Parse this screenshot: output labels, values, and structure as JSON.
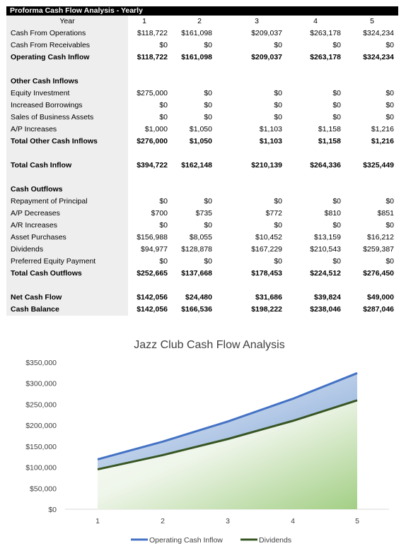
{
  "table": {
    "title": "Proforma Cash Flow Analysis - Yearly",
    "header": {
      "label": "Year",
      "values": [
        "1",
        "2",
        "3",
        "4",
        "5"
      ]
    },
    "rows": [
      {
        "label": "Cash From Operations",
        "values": [
          "$118,722",
          "$161,098",
          "$209,037",
          "$263,178",
          "$324,234"
        ],
        "bold": false
      },
      {
        "label": "Cash From Receivables",
        "values": [
          "$0",
          "$0",
          "$0",
          "$0",
          "$0"
        ],
        "bold": false
      },
      {
        "label": "Operating Cash Inflow",
        "values": [
          "$118,722",
          "$161,098",
          "$209,037",
          "$263,178",
          "$324,234"
        ],
        "bold": true
      },
      {
        "label": "",
        "values": [
          "",
          "",
          "",
          "",
          ""
        ],
        "bold": false
      },
      {
        "label": "Other Cash Inflows",
        "values": [
          "",
          "",
          "",
          "",
          ""
        ],
        "bold": true
      },
      {
        "label": "Equity Investment",
        "values": [
          "$275,000",
          "$0",
          "$0",
          "$0",
          "$0"
        ],
        "bold": false
      },
      {
        "label": "Increased Borrowings",
        "values": [
          "$0",
          "$0",
          "$0",
          "$0",
          "$0"
        ],
        "bold": false
      },
      {
        "label": "Sales of Business Assets",
        "values": [
          "$0",
          "$0",
          "$0",
          "$0",
          "$0"
        ],
        "bold": false
      },
      {
        "label": "A/P Increases",
        "values": [
          "$1,000",
          "$1,050",
          "$1,103",
          "$1,158",
          "$1,216"
        ],
        "bold": false
      },
      {
        "label": "Total Other Cash Inflows",
        "values": [
          "$276,000",
          "$1,050",
          "$1,103",
          "$1,158",
          "$1,216"
        ],
        "bold": true
      },
      {
        "label": "",
        "values": [
          "",
          "",
          "",
          "",
          ""
        ],
        "bold": false
      },
      {
        "label": "Total Cash Inflow",
        "values": [
          "$394,722",
          "$162,148",
          "$210,139",
          "$264,336",
          "$325,449"
        ],
        "bold": true
      },
      {
        "label": "",
        "values": [
          "",
          "",
          "",
          "",
          ""
        ],
        "bold": false
      },
      {
        "label": "Cash Outflows",
        "values": [
          "",
          "",
          "",
          "",
          ""
        ],
        "bold": true
      },
      {
        "label": "Repayment of Principal",
        "values": [
          "$0",
          "$0",
          "$0",
          "$0",
          "$0"
        ],
        "bold": false
      },
      {
        "label": "A/P Decreases",
        "values": [
          "$700",
          "$735",
          "$772",
          "$810",
          "$851"
        ],
        "bold": false
      },
      {
        "label": "A/R Increases",
        "values": [
          "$0",
          "$0",
          "$0",
          "$0",
          "$0"
        ],
        "bold": false
      },
      {
        "label": "Asset Purchases",
        "values": [
          "$156,988",
          "$8,055",
          "$10,452",
          "$13,159",
          "$16,212"
        ],
        "bold": false
      },
      {
        "label": "Dividends",
        "values": [
          "$94,977",
          "$128,878",
          "$167,229",
          "$210,543",
          "$259,387"
        ],
        "bold": false
      },
      {
        "label": "Preferred Equity Payment",
        "values": [
          "$0",
          "$0",
          "$0",
          "$0",
          "$0"
        ],
        "bold": false
      },
      {
        "label": "Total Cash Outflows",
        "values": [
          "$252,665",
          "$137,668",
          "$178,453",
          "$224,512",
          "$276,450"
        ],
        "bold": true
      },
      {
        "label": "",
        "values": [
          "",
          "",
          "",
          "",
          ""
        ],
        "bold": false
      },
      {
        "label": "Net Cash Flow",
        "values": [
          "$142,056",
          "$24,480",
          "$31,686",
          "$39,824",
          "$49,000"
        ],
        "bold": true
      },
      {
        "label": "Cash Balance",
        "values": [
          "$142,056",
          "$166,536",
          "$198,222",
          "$238,046",
          "$287,046"
        ],
        "bold": true
      }
    ]
  },
  "chart_data": {
    "type": "area",
    "title": "Jazz Club Cash Flow Analysis",
    "x": [
      "1",
      "2",
      "3",
      "4",
      "5"
    ],
    "series": [
      {
        "name": "Operating Cash Inflow",
        "values": [
          118722,
          161098,
          209037,
          263178,
          324234
        ],
        "color": "#4472c4"
      },
      {
        "name": "Dividends",
        "values": [
          94977,
          128878,
          167229,
          210543,
          259387
        ],
        "color": "#375623"
      }
    ],
    "ylim": [
      0,
      350000
    ],
    "yticks": [
      "$0",
      "$50,000",
      "$100,000",
      "$150,000",
      "$200,000",
      "$250,000",
      "$300,000",
      "$350,000"
    ],
    "grid": false,
    "legend": "bottom"
  }
}
